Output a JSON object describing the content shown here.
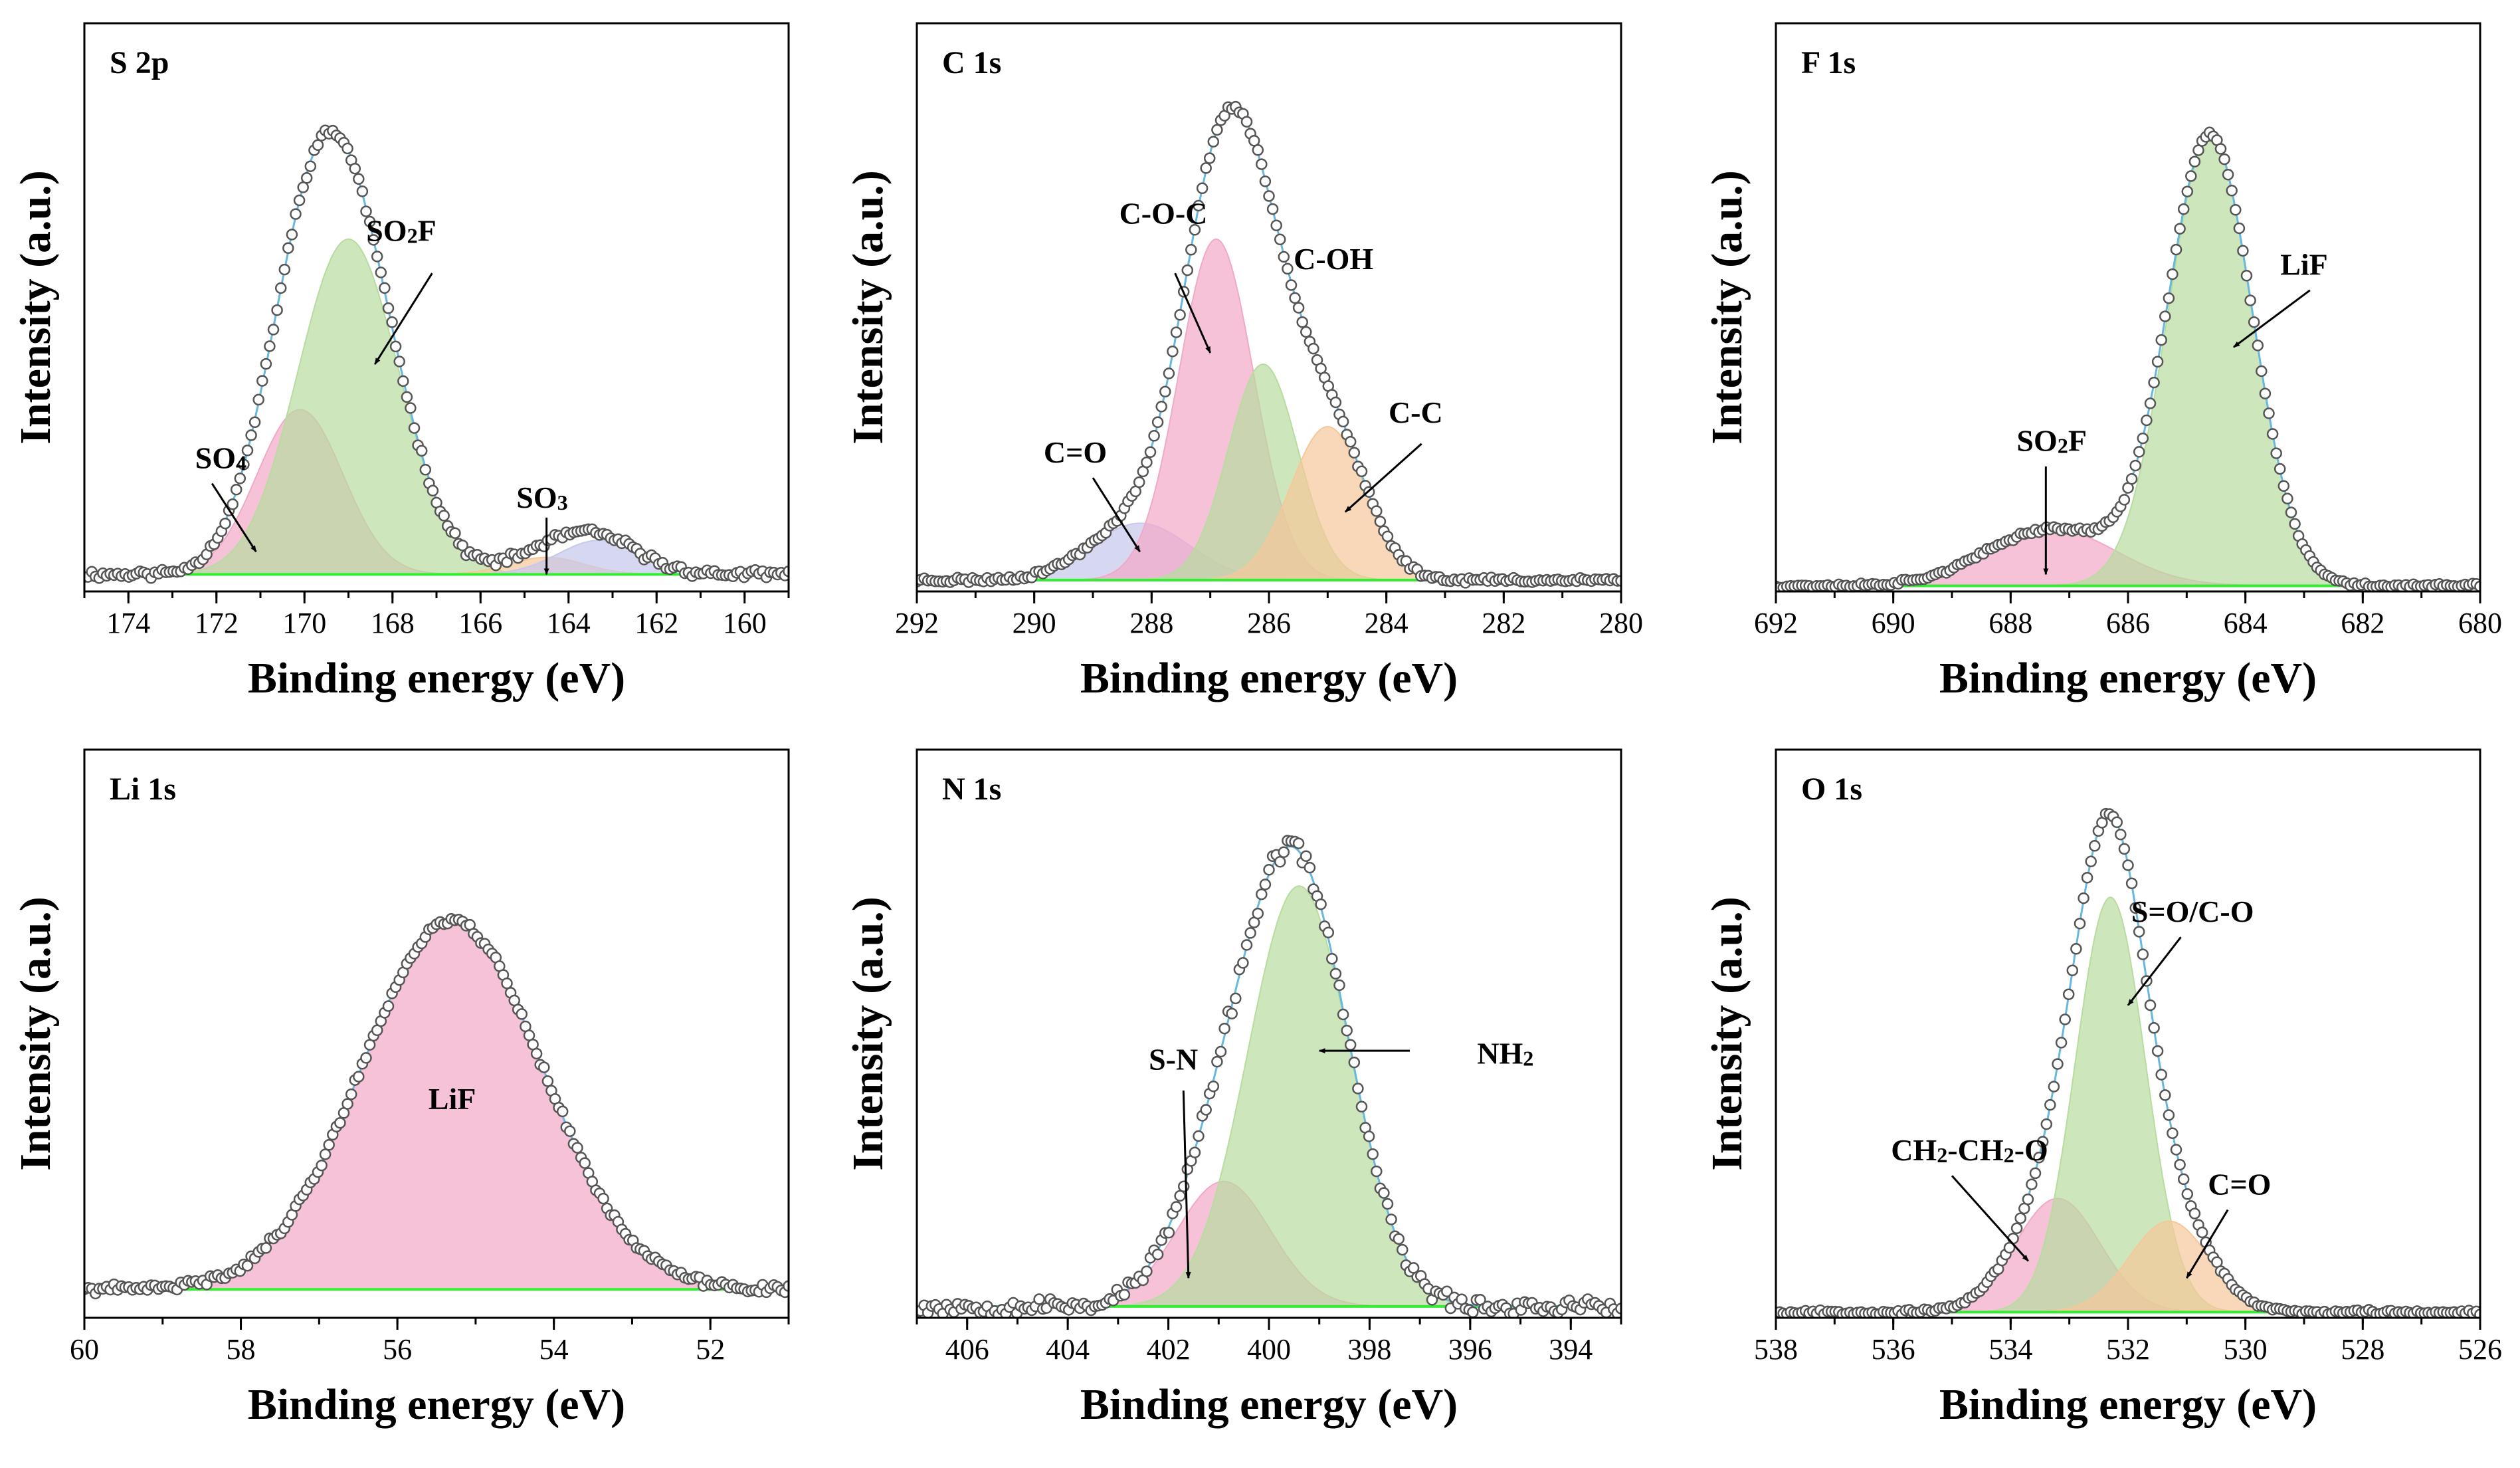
{
  "figure": {
    "colors": {
      "green": "#b8dca0",
      "pink": "#f2a8c8",
      "orange": "#f5c89a",
      "blue": "#c4c8ec",
      "envelope": "#66b8e0",
      "baseline": "#33ee33",
      "marker_edge": "#555555"
    }
  },
  "chart_data": [
    {
      "id": "s2p",
      "type": "line",
      "title": "S 2p",
      "xlabel": "Binding energy (eV)",
      "ylabel": "Intensity (a.u.)",
      "xlim": [
        175,
        159
      ],
      "ylim": [
        0,
        1
      ],
      "xticks": [
        174,
        172,
        170,
        168,
        166,
        164,
        162,
        160
      ],
      "baseline": 0.03,
      "noise": 0.006,
      "seed": 11,
      "components": [
        {
          "name": "SO4",
          "center": 170.1,
          "height": 0.29,
          "fwhm": 2.3,
          "color": "pink"
        },
        {
          "name": "SO2F",
          "center": 169.0,
          "height": 0.59,
          "fwhm": 2.7,
          "color": "green"
        },
        {
          "name": "SO3",
          "center": 164.5,
          "height": 0.03,
          "fwhm": 2.0,
          "color": "orange"
        },
        {
          "name": "SO3-b",
          "center": 163.3,
          "height": 0.06,
          "fwhm": 2.2,
          "color": "blue"
        }
      ],
      "annotations": [
        {
          "label": "SO",
          "sub": "4",
          "tx": 171.9,
          "ty": 0.23,
          "ax1": 172.1,
          "ay1": 0.19,
          "ax2": 171.1,
          "ay2": 0.07
        },
        {
          "label": "SO",
          "sub": "2",
          "tail": "F",
          "tx": 167.8,
          "ty": 0.63,
          "ax1": 167.1,
          "ay1": 0.56,
          "ax2": 168.4,
          "ay2": 0.4
        },
        {
          "label": "SO",
          "sub": "3",
          "tx": 164.6,
          "ty": 0.16,
          "ax1": 164.5,
          "ay1": 0.13,
          "ax2": 164.5,
          "ay2": 0.03
        }
      ]
    },
    {
      "id": "c1s",
      "type": "line",
      "title": "C 1s",
      "xlabel": "Binding energy (eV)",
      "ylabel": "Intensity (a.u.)",
      "xlim": [
        292,
        280
      ],
      "ylim": [
        0,
        1
      ],
      "xticks": [
        292,
        290,
        288,
        286,
        284,
        282,
        280
      ],
      "baseline": 0.02,
      "noise": 0.004,
      "seed": 23,
      "components": [
        {
          "name": "C=O",
          "center": 288.2,
          "height": 0.1,
          "fwhm": 2.0,
          "color": "blue"
        },
        {
          "name": "C-O-C",
          "center": 286.9,
          "height": 0.6,
          "fwhm": 1.5,
          "color": "pink"
        },
        {
          "name": "C-OH",
          "center": 286.1,
          "height": 0.38,
          "fwhm": 1.4,
          "color": "green"
        },
        {
          "name": "C-C",
          "center": 285.0,
          "height": 0.27,
          "fwhm": 1.5,
          "color": "orange"
        }
      ],
      "annotations": [
        {
          "label": "C=O",
          "tx": 289.3,
          "ty": 0.24,
          "ax1": 289.0,
          "ay1": 0.2,
          "ax2": 288.2,
          "ay2": 0.07
        },
        {
          "label": "C-O-C",
          "tx": 287.8,
          "ty": 0.66,
          "ax1": 287.6,
          "ay1": 0.56,
          "ax2": 287.0,
          "ay2": 0.42
        },
        {
          "label": "C-OH",
          "tx": 284.9,
          "ty": 0.58
        },
        {
          "label": "C-C",
          "tx": 283.5,
          "ty": 0.31,
          "ax1": 283.4,
          "ay1": 0.26,
          "ax2": 284.7,
          "ay2": 0.14
        }
      ]
    },
    {
      "id": "f1s",
      "type": "line",
      "title": "F 1s",
      "xlabel": "Binding energy (eV)",
      "ylabel": "Intensity (a.u.)",
      "xlim": [
        692,
        680
      ],
      "ylim": [
        0,
        1
      ],
      "xticks": [
        692,
        690,
        688,
        686,
        684,
        682,
        680
      ],
      "baseline": 0.01,
      "noise": 0.003,
      "seed": 37,
      "components": [
        {
          "name": "SO2F",
          "center": 687.3,
          "height": 0.1,
          "fwhm": 2.6,
          "color": "pink"
        },
        {
          "name": "LiF",
          "center": 684.6,
          "height": 0.79,
          "fwhm": 1.7,
          "color": "green"
        }
      ],
      "annotations": [
        {
          "label": "SO",
          "sub": "2",
          "tail": "F",
          "tx": 687.3,
          "ty": 0.26,
          "ax1": 687.4,
          "ay1": 0.22,
          "ax2": 687.4,
          "ay2": 0.03
        },
        {
          "label": "LiF",
          "tx": 683.0,
          "ty": 0.57,
          "ax1": 682.9,
          "ay1": 0.53,
          "ax2": 684.2,
          "ay2": 0.43
        }
      ]
    },
    {
      "id": "li1s",
      "type": "line",
      "title": "Li 1s",
      "xlabel": "Binding energy (eV)",
      "ylabel": "Intensity (a.u.)",
      "xlim": [
        60,
        51
      ],
      "ylim": [
        0,
        1
      ],
      "xticks": [
        60,
        58,
        56,
        54,
        52
      ],
      "baseline": 0.05,
      "noise": 0.006,
      "seed": 41,
      "components": [
        {
          "name": "LiF",
          "center": 55.3,
          "height": 0.65,
          "fwhm": 2.7,
          "color": "pink"
        }
      ],
      "annotations": [
        {
          "label": "LiF",
          "tx": 55.3,
          "ty": 0.38
        }
      ]
    },
    {
      "id": "n1s",
      "type": "line",
      "title": "N 1s",
      "xlabel": "Binding energy (eV)",
      "ylabel": "Intensity (a.u.)",
      "xlim": [
        407,
        393
      ],
      "ylim": [
        0,
        1
      ],
      "xticks": [
        406,
        404,
        402,
        400,
        398,
        396,
        394
      ],
      "baseline": 0.02,
      "noise": 0.012,
      "seed": 53,
      "components": [
        {
          "name": "S-N",
          "center": 400.9,
          "height": 0.22,
          "fwhm": 2.2,
          "color": "pink"
        },
        {
          "name": "NH2",
          "center": 399.4,
          "height": 0.74,
          "fwhm": 2.4,
          "color": "green"
        }
      ],
      "annotations": [
        {
          "label": "S-N",
          "tx": 401.9,
          "ty": 0.45,
          "ax1": 401.7,
          "ay1": 0.4,
          "ax2": 401.6,
          "ay2": 0.07
        },
        {
          "label": "NH",
          "sub": "2",
          "tx": 395.3,
          "ty": 0.46,
          "ax1": 397.2,
          "ay1": 0.47,
          "ax2": 399.0,
          "ay2": 0.47
        }
      ]
    },
    {
      "id": "o1s",
      "type": "line",
      "title": "O 1s",
      "xlabel": "Binding energy (eV)",
      "ylabel": "Intensity (a.u.)",
      "xlim": [
        538,
        526
      ],
      "ylim": [
        0,
        1
      ],
      "xticks": [
        538,
        536,
        534,
        532,
        530,
        528,
        526
      ],
      "baseline": 0.01,
      "noise": 0.003,
      "seed": 67,
      "components": [
        {
          "name": "CH2-CH2-O",
          "center": 533.2,
          "height": 0.2,
          "fwhm": 1.7,
          "color": "pink"
        },
        {
          "name": "S=O/C-O",
          "center": 532.3,
          "height": 0.73,
          "fwhm": 1.4,
          "color": "green"
        },
        {
          "name": "C=O",
          "center": 531.3,
          "height": 0.16,
          "fwhm": 1.6,
          "color": "orange"
        }
      ],
      "annotations": [
        {
          "label": "CH",
          "sub": "2",
          "tail": "-CH",
          "sub2": "2",
          "tail2": "-O",
          "tx": 534.7,
          "ty": 0.29,
          "ax1": 535.0,
          "ay1": 0.25,
          "ax2": 533.7,
          "ay2": 0.1
        },
        {
          "label": "S=O/C-O",
          "tx": 530.9,
          "ty": 0.71,
          "ax1": 531.1,
          "ay1": 0.67,
          "ax2": 532.0,
          "ay2": 0.55
        },
        {
          "label": "C=O",
          "tx": 530.1,
          "ty": 0.23,
          "ax1": 530.3,
          "ay1": 0.19,
          "ax2": 531.0,
          "ay2": 0.07
        }
      ]
    }
  ]
}
